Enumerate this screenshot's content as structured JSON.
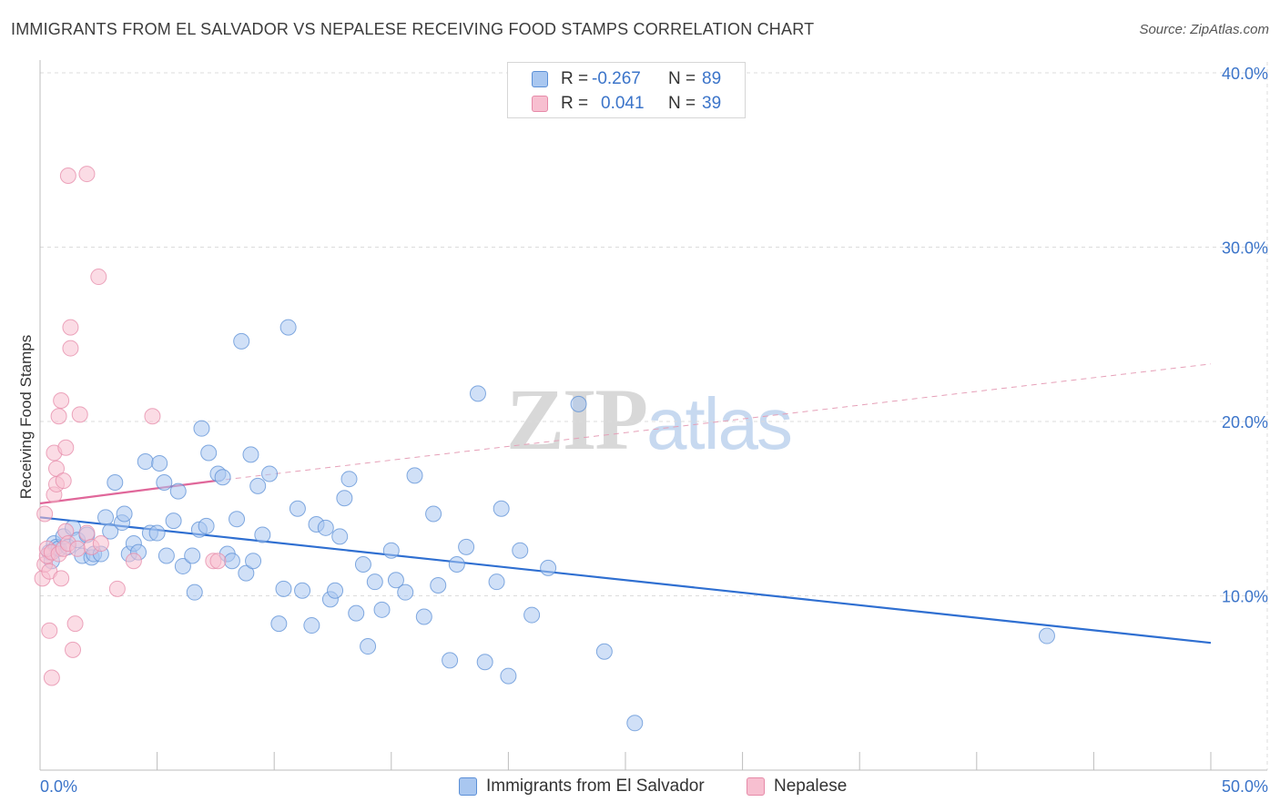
{
  "header": {
    "title": "IMMIGRANTS FROM EL SALVADOR VS NEPALESE RECEIVING FOOD STAMPS CORRELATION CHART",
    "source": "Source: ZipAtlas.com"
  },
  "watermark": {
    "zip": "ZIP",
    "atlas": "atlas"
  },
  "legend": {
    "rows": [
      {
        "r_label": "R =",
        "r_value": "-0.267",
        "n_label": "N =",
        "n_value": "89",
        "color": "#a9c7f0",
        "border": "#5b8fd6"
      },
      {
        "r_label": "R =",
        "r_value": "0.041",
        "n_label": "N =",
        "n_value": "39",
        "color": "#f7bfd0",
        "border": "#e68aa8"
      }
    ]
  },
  "bottom_legend": {
    "items": [
      {
        "label": "Immigrants from El Salvador",
        "color": "#a9c7f0",
        "border": "#5b8fd6"
      },
      {
        "label": "Nepalese",
        "color": "#f7bfd0",
        "border": "#e68aa8"
      }
    ]
  },
  "chart_data": {
    "type": "scatter",
    "title": "IMMIGRANTS FROM EL SALVADOR VS NEPALESE RECEIVING FOOD STAMPS CORRELATION CHART",
    "xlabel": "",
    "ylabel": "Receiving Food Stamps",
    "xlim": [
      0,
      50
    ],
    "ylim": [
      0,
      40
    ],
    "x_tick_labels": [
      "0.0%",
      "50.0%"
    ],
    "y_ticks": [
      10,
      20,
      30,
      40
    ],
    "y_tick_labels": [
      "10.0%",
      "20.0%",
      "30.0%",
      "40.0%"
    ],
    "grid": true,
    "legend_position": "top-center",
    "series": [
      {
        "name": "Immigrants from El Salvador",
        "color": "#5b8fd6",
        "fill": "#a9c7f0",
        "trend": {
          "x": [
            0.0,
            50.0
          ],
          "y": [
            14.5,
            7.3
          ],
          "style": "solid"
        },
        "x": [
          0.4,
          0.5,
          0.6,
          0.7,
          0.8,
          1.0,
          1.2,
          1.4,
          1.6,
          1.8,
          2.0,
          2.2,
          2.3,
          2.6,
          2.8,
          3.0,
          3.2,
          3.5,
          3.6,
          3.8,
          4.0,
          4.2,
          4.5,
          4.7,
          5.0,
          5.1,
          5.3,
          5.4,
          5.7,
          5.9,
          6.1,
          6.5,
          6.6,
          6.8,
          6.9,
          7.1,
          7.2,
          7.6,
          7.8,
          8.0,
          8.2,
          8.4,
          8.6,
          8.8,
          9.0,
          9.1,
          9.3,
          9.5,
          9.8,
          10.2,
          10.4,
          10.6,
          11.0,
          11.2,
          11.6,
          11.8,
          12.2,
          12.4,
          12.6,
          12.8,
          13.0,
          13.2,
          13.5,
          13.8,
          14.0,
          14.3,
          14.6,
          15.0,
          15.2,
          15.6,
          16.0,
          16.4,
          16.8,
          17.0,
          17.5,
          17.8,
          18.2,
          18.7,
          19.0,
          19.5,
          19.7,
          20.0,
          20.5,
          21.0,
          21.7,
          23.0,
          24.1,
          25.4,
          43.0
        ],
        "y": [
          12.5,
          12.0,
          13.0,
          12.8,
          12.7,
          13.4,
          12.8,
          13.9,
          13.2,
          12.3,
          13.5,
          12.2,
          12.4,
          12.4,
          14.5,
          13.7,
          16.5,
          14.2,
          14.7,
          12.4,
          13.0,
          12.5,
          17.7,
          13.6,
          13.6,
          17.6,
          16.5,
          12.3,
          14.3,
          16.0,
          11.7,
          12.3,
          10.2,
          13.8,
          19.6,
          14.0,
          18.2,
          17.0,
          16.8,
          12.4,
          12.0,
          14.4,
          24.6,
          11.3,
          18.1,
          12.0,
          16.3,
          13.5,
          17.0,
          8.4,
          10.4,
          25.4,
          15.0,
          10.3,
          8.3,
          14.1,
          13.9,
          9.8,
          10.3,
          13.4,
          15.6,
          16.7,
          9.0,
          11.8,
          7.1,
          10.8,
          9.2,
          12.6,
          10.9,
          10.2,
          16.9,
          8.8,
          14.7,
          10.6,
          6.3,
          11.8,
          12.8,
          21.6,
          6.2,
          10.8,
          15.0,
          5.4,
          12.6,
          8.9,
          11.6,
          21.0,
          6.8,
          2.7,
          7.7
        ]
      },
      {
        "name": "Nepalese",
        "color": "#e68aa8",
        "fill": "#f7bfd0",
        "trend": {
          "x": [
            0.0,
            7.5
          ],
          "y": [
            15.3,
            16.6
          ],
          "style": "solid",
          "extended": {
            "x": [
              7.5,
              50.0
            ],
            "y": [
              16.6,
              23.3
            ],
            "style": "dashed"
          }
        },
        "x": [
          0.1,
          0.2,
          0.2,
          0.3,
          0.3,
          0.4,
          0.4,
          0.5,
          0.5,
          0.6,
          0.6,
          0.7,
          0.7,
          0.8,
          0.8,
          0.9,
          0.9,
          1.0,
          1.0,
          1.1,
          1.1,
          1.2,
          1.2,
          1.3,
          1.3,
          1.4,
          1.5,
          1.6,
          1.7,
          2.0,
          2.0,
          2.2,
          2.5,
          2.6,
          3.3,
          4.0,
          4.8,
          7.4,
          7.6
        ],
        "y": [
          11.0,
          14.7,
          11.8,
          12.3,
          12.7,
          11.4,
          8.0,
          12.5,
          5.3,
          15.8,
          18.2,
          16.4,
          17.3,
          12.4,
          20.3,
          21.2,
          11.0,
          12.7,
          16.6,
          18.5,
          13.7,
          13.0,
          34.1,
          25.4,
          24.2,
          6.9,
          8.4,
          12.7,
          20.4,
          34.2,
          13.6,
          12.8,
          28.3,
          13.0,
          10.4,
          12.0,
          20.3,
          12.0,
          12.0
        ]
      }
    ]
  }
}
